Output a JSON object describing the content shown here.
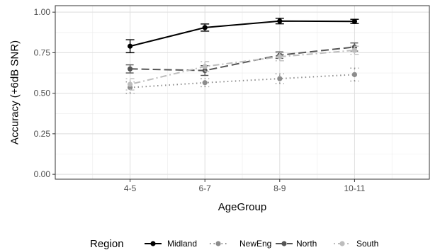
{
  "chart_data": {
    "type": "line",
    "title": "",
    "xlabel": "AgeGroup",
    "ylabel": "Accuracy (+6dB SNR)",
    "categories": [
      "4-5",
      "6-7",
      "8-9",
      "10-11"
    ],
    "ylim": [
      -0.03,
      1.04
    ],
    "yticks": [
      0.0,
      0.25,
      0.5,
      0.75,
      1.0
    ],
    "ytick_labels": [
      "0.00",
      "0.25",
      "0.50",
      "0.75",
      "1.00"
    ],
    "grid": true,
    "legend_title": "Region",
    "legend_position": "bottom",
    "series": [
      {
        "name": "Midland",
        "color": "#000000",
        "dash": "solid",
        "values": [
          0.79,
          0.905,
          0.945,
          0.943
        ],
        "errors": [
          0.04,
          0.022,
          0.017,
          0.013
        ]
      },
      {
        "name": "NewEng",
        "color": "#8c8c8c",
        "dash": "dotted",
        "values": [
          0.535,
          0.565,
          0.59,
          0.615
        ],
        "errors": [
          0.035,
          0.025,
          0.03,
          0.04
        ]
      },
      {
        "name": "North",
        "color": "#555555",
        "dash": "longdash",
        "values": [
          0.65,
          0.64,
          0.735,
          0.785
        ],
        "errors": [
          0.025,
          0.03,
          0.02,
          0.025
        ]
      },
      {
        "name": "South",
        "color": "#bdbdbd",
        "dash": "dotdash",
        "values": [
          0.555,
          0.665,
          0.725,
          0.765
        ],
        "errors": [
          0.035,
          0.03,
          0.025,
          0.025
        ]
      }
    ]
  }
}
